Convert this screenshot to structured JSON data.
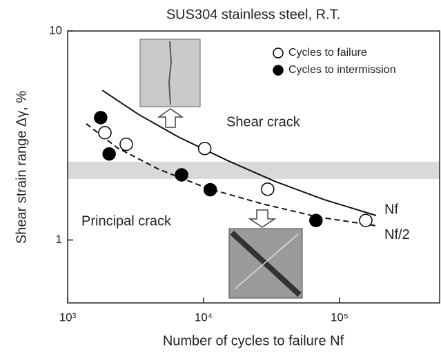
{
  "chart_data": {
    "type": "scatter",
    "title": "SUS304   stainless steel,  R.T.",
    "xlabel": "Number of cycles to failure  Nf",
    "ylabel": "Shear strain range  Δγ, %",
    "xscale": "log",
    "yscale": "log",
    "xlim": [
      1000,
      545000
    ],
    "ylim": [
      0.5,
      10
    ],
    "xticks": [
      {
        "value": 1000,
        "label": "10³"
      },
      {
        "value": 10000,
        "label": "10⁴"
      },
      {
        "value": 100000,
        "label": "10⁵"
      }
    ],
    "yticks": [
      1,
      10
    ],
    "legend": "upper right",
    "series": [
      {
        "name": "Cycles to failure",
        "marker": "open",
        "color": "#000000",
        "x": [
          1880,
          2700,
          10200,
          29600,
          156000
        ],
        "values": [
          3.26,
          2.87,
          2.74,
          1.75,
          1.24
        ]
      },
      {
        "name": "Cycles to intermission",
        "marker": "filled",
        "color": "#000000",
        "x": [
          1750,
          2020,
          6890,
          11200,
          67100
        ],
        "values": [
          3.85,
          2.58,
          2.05,
          1.74,
          1.24
        ]
      }
    ],
    "curves": [
      {
        "label": "Nf",
        "style": "solid",
        "x": [
          1800,
          3300,
          6600,
          15000,
          34000,
          77000,
          186000
        ],
        "values": [
          5.2,
          4.0,
          3.1,
          2.4,
          1.9,
          1.56,
          1.31
        ]
      },
      {
        "label": "Nf/2",
        "style": "dashed",
        "x": [
          1370,
          2320,
          4680,
          10600,
          27000,
          68900,
          186000
        ],
        "values": [
          3.6,
          2.76,
          2.18,
          1.77,
          1.49,
          1.29,
          1.17
        ]
      }
    ],
    "band": [
      1.96,
      2.37
    ],
    "annotations": [
      "Shear crack",
      "Principal crack"
    ]
  }
}
